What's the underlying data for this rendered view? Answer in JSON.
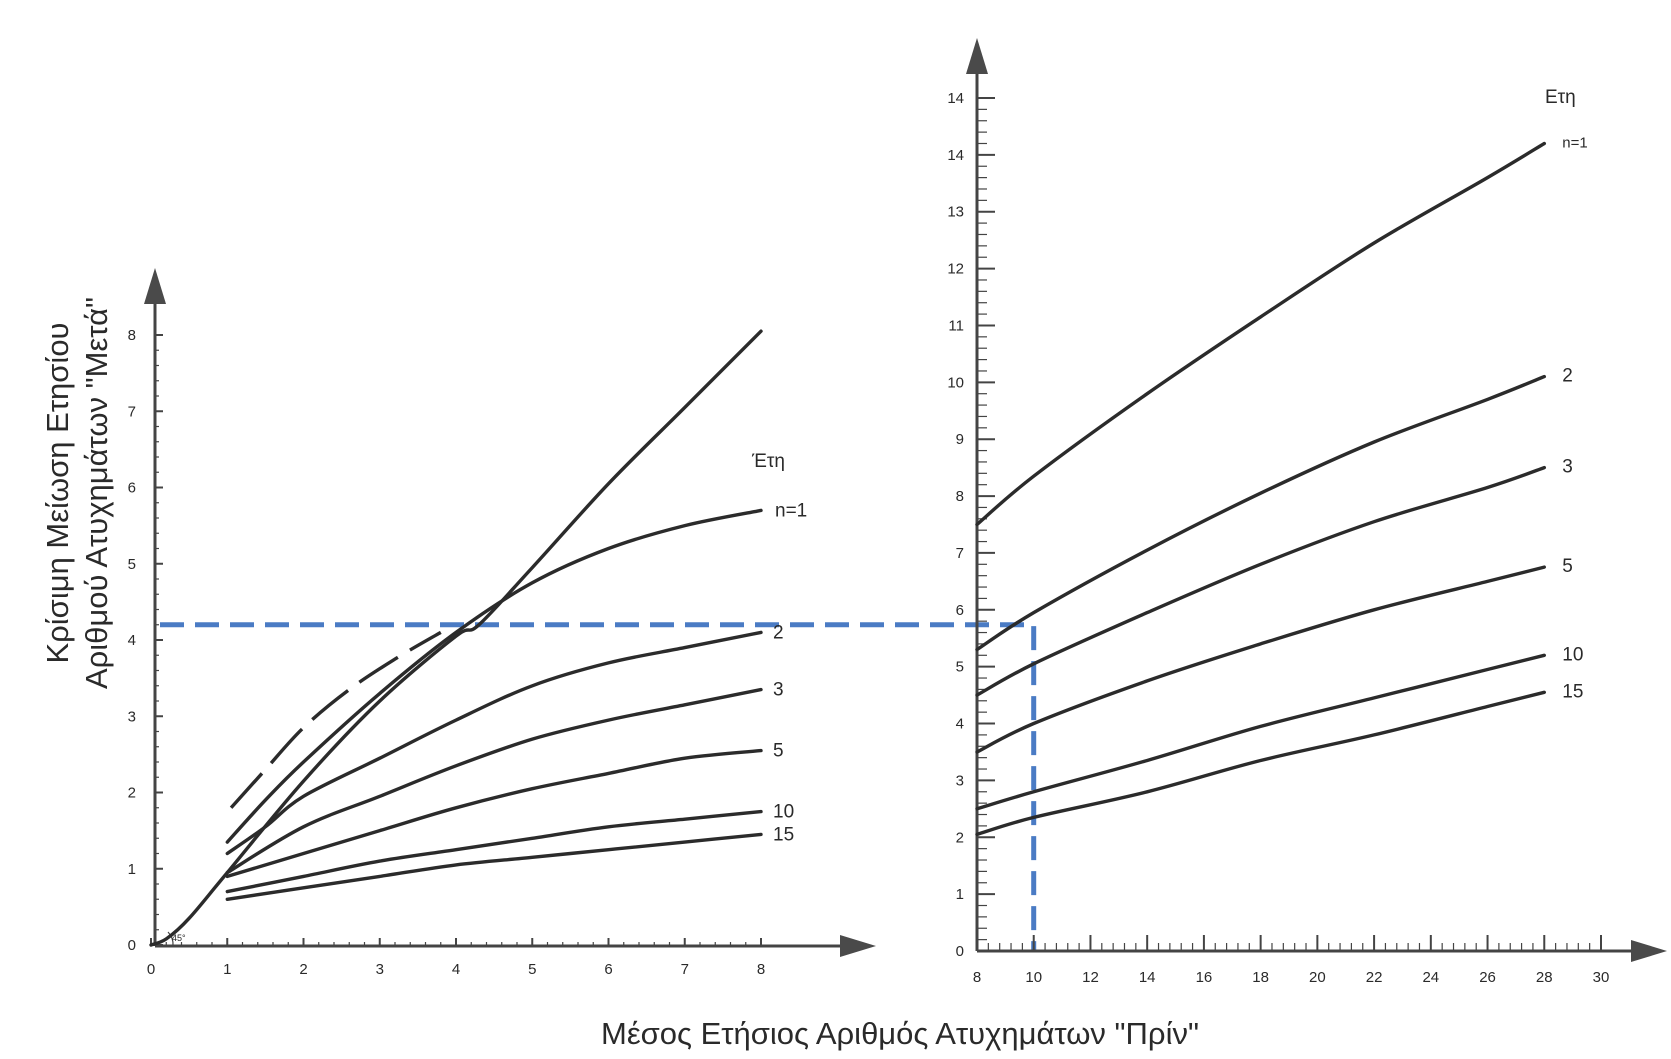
{
  "chart_data": {
    "type": "line",
    "xlabel": "Μέσος Ετήσιος Αριθμός Ατυχημάτων \"Πρίν\"",
    "ylabel_lines": [
      "Κρίσιμη Μείωση Ετησίου",
      "Αριθμού Ατυχημάτων \"Μετά\""
    ],
    "colors": {
      "curve": "#2b2b2b",
      "axis": "#444444",
      "guide": "#4a7bc4"
    },
    "panels": [
      {
        "id": "left",
        "xlim": [
          0,
          8
        ],
        "ylim": [
          0,
          8
        ],
        "x_ticks": [
          "0",
          "1",
          "2",
          "3",
          "4",
          "5",
          "6",
          "7",
          "8"
        ],
        "y_ticks": [
          "0",
          "1",
          "2",
          "3",
          "4",
          "5",
          "6",
          "7",
          "8"
        ],
        "years_label": "Έτη",
        "angle_label": "45°",
        "reference_line": {
          "name": "45°",
          "points": [
            [
              0,
              0
            ],
            [
              0.2,
              0.08
            ],
            [
              0.5,
              0.35
            ],
            [
              1,
              0.95
            ],
            [
              2,
              2.15
            ],
            [
              3,
              3.2
            ],
            [
              4,
              4.05
            ],
            [
              4.3,
              4.2
            ],
            [
              5,
              4.95
            ],
            [
              6,
              6.05
            ],
            [
              7,
              7.05
            ],
            [
              8,
              8.05
            ]
          ]
        },
        "dashed_curve": {
          "points": [
            [
              1.05,
              1.8
            ],
            [
              1.5,
              2.3
            ],
            [
              2,
              2.85
            ],
            [
              2.6,
              3.35
            ],
            [
              3.2,
              3.75
            ],
            [
              3.8,
              4.1
            ]
          ]
        },
        "series": [
          {
            "name": "n=1",
            "points": [
              [
                1,
                1.35
              ],
              [
                1.5,
                1.9
              ],
              [
                2,
                2.4
              ],
              [
                3,
                3.3
              ],
              [
                4,
                4.1
              ],
              [
                5,
                4.75
              ],
              [
                6,
                5.2
              ],
              [
                7,
                5.5
              ],
              [
                8,
                5.7
              ]
            ]
          },
          {
            "name": "2",
            "points": [
              [
                1,
                1.2
              ],
              [
                1.5,
                1.55
              ],
              [
                2,
                1.95
              ],
              [
                3,
                2.45
              ],
              [
                4,
                2.95
              ],
              [
                5,
                3.4
              ],
              [
                6,
                3.7
              ],
              [
                7,
                3.9
              ],
              [
                8,
                4.1
              ]
            ]
          },
          {
            "name": "3",
            "points": [
              [
                1,
                0.95
              ],
              [
                2,
                1.55
              ],
              [
                3,
                1.95
              ],
              [
                4,
                2.35
              ],
              [
                5,
                2.7
              ],
              [
                6,
                2.95
              ],
              [
                7,
                3.15
              ],
              [
                8,
                3.35
              ]
            ]
          },
          {
            "name": "5",
            "points": [
              [
                1,
                0.9
              ],
              [
                2,
                1.2
              ],
              [
                3,
                1.5
              ],
              [
                4,
                1.8
              ],
              [
                5,
                2.05
              ],
              [
                6,
                2.25
              ],
              [
                7,
                2.45
              ],
              [
                8,
                2.55
              ]
            ]
          },
          {
            "name": "10",
            "points": [
              [
                1,
                0.7
              ],
              [
                2,
                0.9
              ],
              [
                3,
                1.1
              ],
              [
                4,
                1.25
              ],
              [
                5,
                1.4
              ],
              [
                6,
                1.55
              ],
              [
                7,
                1.65
              ],
              [
                8,
                1.75
              ]
            ]
          },
          {
            "name": "15",
            "points": [
              [
                1,
                0.6
              ],
              [
                2,
                0.75
              ],
              [
                3,
                0.9
              ],
              [
                4,
                1.05
              ],
              [
                5,
                1.15
              ],
              [
                6,
                1.25
              ],
              [
                7,
                1.35
              ],
              [
                8,
                1.45
              ]
            ]
          }
        ]
      },
      {
        "id": "right",
        "xlim": [
          8,
          30
        ],
        "ylim": [
          0,
          15
        ],
        "x_ticks": [
          "8",
          "10",
          "12",
          "14",
          "16",
          "18",
          "20",
          "22",
          "24",
          "26",
          "28",
          "30"
        ],
        "y_ticks": [
          "0",
          "1",
          "2",
          "3",
          "4",
          "5",
          "6",
          "7",
          "8",
          "9",
          "10",
          "11",
          "12",
          "13",
          "14",
          "14"
        ],
        "years_label": "Ετη",
        "series": [
          {
            "name": "n=1",
            "points": [
              [
                8,
                7.5
              ],
              [
                10,
                8.35
              ],
              [
                14,
                9.8
              ],
              [
                18,
                11.15
              ],
              [
                22,
                12.45
              ],
              [
                26,
                13.6
              ],
              [
                28,
                14.2
              ]
            ]
          },
          {
            "name": "2",
            "points": [
              [
                8,
                5.3
              ],
              [
                10,
                5.95
              ],
              [
                14,
                7.05
              ],
              [
                18,
                8.05
              ],
              [
                22,
                8.95
              ],
              [
                26,
                9.7
              ],
              [
                28,
                10.1
              ]
            ]
          },
          {
            "name": "3",
            "points": [
              [
                8,
                4.5
              ],
              [
                10,
                5.05
              ],
              [
                14,
                5.95
              ],
              [
                18,
                6.8
              ],
              [
                22,
                7.55
              ],
              [
                26,
                8.15
              ],
              [
                28,
                8.5
              ]
            ]
          },
          {
            "name": "5",
            "points": [
              [
                8,
                3.5
              ],
              [
                10,
                4.0
              ],
              [
                14,
                4.75
              ],
              [
                18,
                5.4
              ],
              [
                22,
                6.0
              ],
              [
                26,
                6.5
              ],
              [
                28,
                6.75
              ]
            ]
          },
          {
            "name": "10",
            "points": [
              [
                8,
                2.5
              ],
              [
                10,
                2.8
              ],
              [
                14,
                3.35
              ],
              [
                18,
                3.95
              ],
              [
                22,
                4.45
              ],
              [
                26,
                4.95
              ],
              [
                28,
                5.2
              ]
            ]
          },
          {
            "name": "15",
            "points": [
              [
                8,
                2.05
              ],
              [
                10,
                2.35
              ],
              [
                14,
                2.8
              ],
              [
                18,
                3.35
              ],
              [
                22,
                3.8
              ],
              [
                26,
                4.3
              ],
              [
                28,
                4.55
              ]
            ]
          }
        ]
      }
    ],
    "guide_lines": {
      "left_y": 4.2,
      "right_x": 10,
      "right_y": 5.7
    }
  }
}
